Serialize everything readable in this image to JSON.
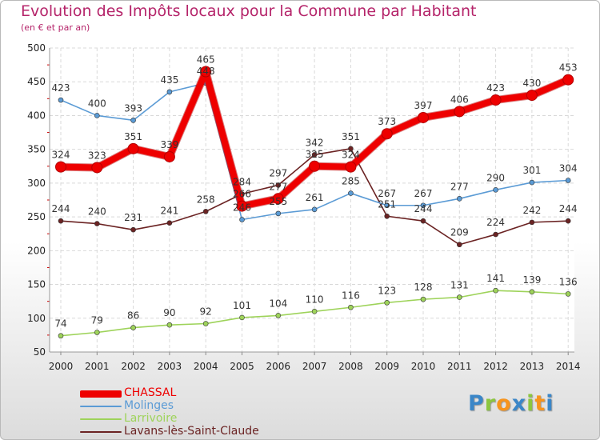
{
  "chart_data": {
    "type": "line",
    "title": "Evolution des Impôts locaux pour la Commune par Habitant",
    "subtitle": "(en € et par an)",
    "categories": [
      "2000",
      "2001",
      "2002",
      "2003",
      "2004",
      "2005",
      "2006",
      "2007",
      "2008",
      "2009",
      "2010",
      "2011",
      "2012",
      "2013",
      "2014"
    ],
    "ylim": [
      50,
      500
    ],
    "yticks": [
      50,
      100,
      150,
      200,
      250,
      300,
      350,
      400,
      450,
      500
    ],
    "grid": true,
    "legend_position": "bottom-left",
    "series": [
      {
        "name": "Larrivoire",
        "color": "#9ed35a",
        "values": [
          74,
          79,
          86,
          90,
          92,
          101,
          104,
          110,
          116,
          123,
          128,
          131,
          141,
          139,
          136
        ]
      },
      {
        "name": "Lavans-lès-Saint-Claude",
        "color": "#6b2323",
        "values": [
          244,
          240,
          231,
          241,
          258,
          284,
          297,
          342,
          351,
          251,
          244,
          209,
          224,
          242,
          244
        ]
      },
      {
        "name": "Molinges",
        "color": "#5b9bd5",
        "values": [
          423,
          400,
          393,
          435,
          448,
          246,
          255,
          261,
          285,
          267,
          267,
          277,
          290,
          301,
          304
        ]
      },
      {
        "name": "CHASSAL",
        "color": "#ee0000",
        "values": [
          324,
          323,
          351,
          339,
          465,
          266,
          277,
          325,
          324,
          373,
          397,
          406,
          423,
          430,
          453
        ]
      }
    ],
    "legend_order": [
      "CHASSAL",
      "Molinges",
      "Larrivoire",
      "Lavans-lès-Saint-Claude"
    ]
  },
  "logo": {
    "letters": [
      {
        "ch": "P",
        "color": "#3a86c8"
      },
      {
        "ch": "r",
        "color": "#8cc63f"
      },
      {
        "ch": "o",
        "color": "#f7941d"
      },
      {
        "ch": "x",
        "color": "#3a86c8"
      },
      {
        "ch": "i",
        "color": "#8cc63f"
      },
      {
        "ch": "t",
        "color": "#f7941d"
      },
      {
        "ch": "i",
        "color": "#3a86c8"
      }
    ]
  }
}
